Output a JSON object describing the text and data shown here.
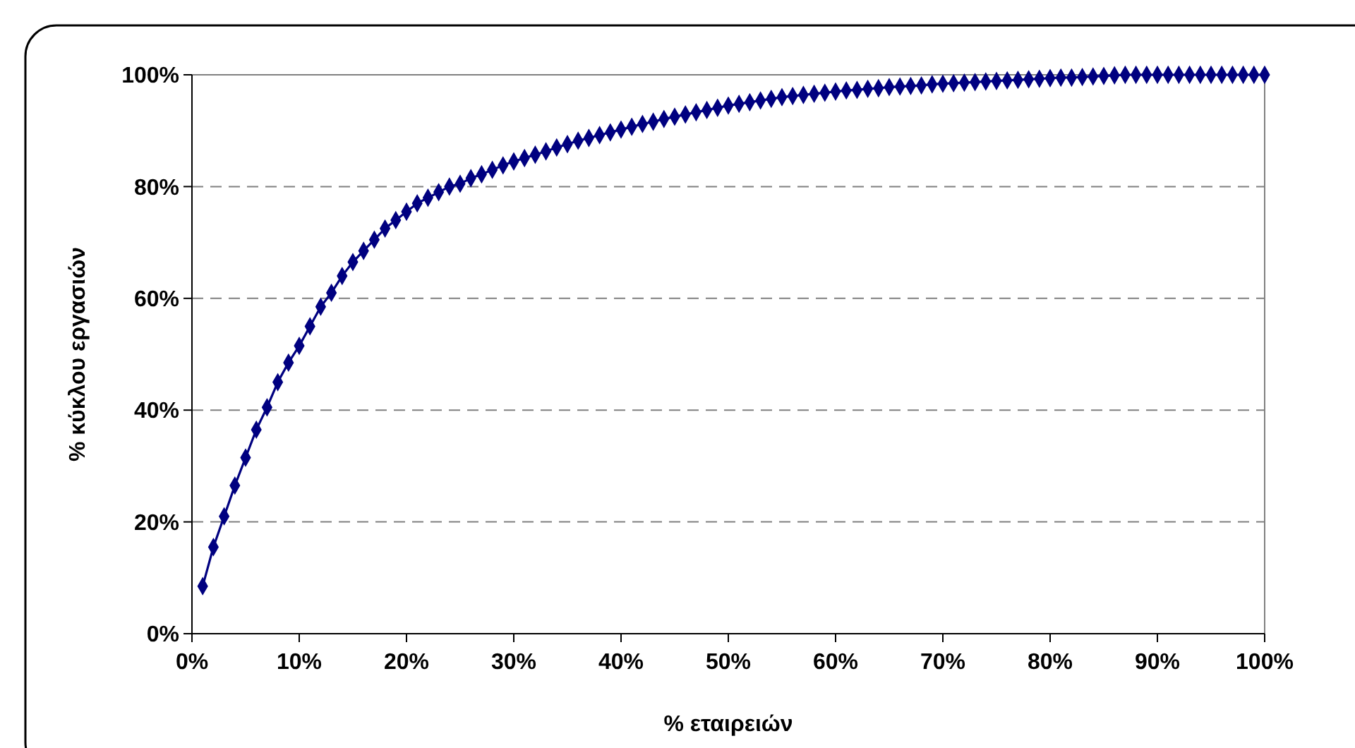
{
  "chart_data": {
    "type": "line",
    "xlabel": "% εταιρειών",
    "ylabel": "% κύκλου εργασιών",
    "x": [
      1,
      2,
      3,
      4,
      5,
      6,
      7,
      8,
      9,
      10,
      11,
      12,
      13,
      14,
      15,
      16,
      17,
      18,
      19,
      20,
      21,
      22,
      23,
      24,
      25,
      26,
      27,
      28,
      29,
      30,
      31,
      32,
      33,
      34,
      35,
      36,
      37,
      38,
      39,
      40,
      41,
      42,
      43,
      44,
      45,
      46,
      47,
      48,
      49,
      50,
      51,
      52,
      53,
      54,
      55,
      56,
      57,
      58,
      59,
      60,
      61,
      62,
      63,
      64,
      65,
      66,
      67,
      68,
      69,
      70,
      71,
      72,
      73,
      74,
      75,
      76,
      77,
      78,
      79,
      80,
      81,
      82,
      83,
      84,
      85,
      86,
      87,
      88,
      89,
      90,
      91,
      92,
      93,
      94,
      95,
      96,
      97,
      98,
      99,
      100
    ],
    "series": [
      {
        "color": "#000080",
        "values": [
          8.5,
          15.5,
          21,
          26.5,
          31.5,
          36.5,
          40.5,
          45,
          48.5,
          51.5,
          55,
          58.5,
          61,
          64,
          66.5,
          68.5,
          70.5,
          72.5,
          74,
          75.5,
          77,
          78,
          79,
          80,
          80.5,
          81.5,
          82.2,
          83,
          83.8,
          84.5,
          85.1,
          85.7,
          86.3,
          87,
          87.6,
          88.2,
          88.7,
          89.2,
          89.7,
          90.2,
          90.7,
          91.2,
          91.6,
          92.1,
          92.5,
          92.9,
          93.3,
          93.7,
          94.1,
          94.5,
          94.8,
          95.1,
          95.4,
          95.7,
          96,
          96.2,
          96.4,
          96.6,
          96.8,
          97,
          97.2,
          97.3,
          97.5,
          97.6,
          97.8,
          97.9,
          98,
          98.1,
          98.3,
          98.4,
          98.5,
          98.6,
          98.7,
          98.8,
          98.9,
          99,
          99.1,
          99.2,
          99.3,
          99.4,
          99.5,
          99.5,
          99.6,
          99.7,
          99.8,
          99.9,
          100,
          100,
          100,
          100,
          100,
          100,
          100,
          100,
          100,
          100,
          100,
          100,
          100,
          100
        ]
      }
    ],
    "xlim": [
      0,
      100
    ],
    "xticks": [
      {
        "value": 0,
        "label": "0%"
      },
      {
        "value": 10,
        "label": "10%"
      },
      {
        "value": 20,
        "label": "20%"
      },
      {
        "value": 30,
        "label": "30%"
      },
      {
        "value": 40,
        "label": "40%"
      },
      {
        "value": 50,
        "label": "50%"
      },
      {
        "value": 60,
        "label": "60%"
      },
      {
        "value": 70,
        "label": "70%"
      },
      {
        "value": 80,
        "label": "80%"
      },
      {
        "value": 90,
        "label": "90%"
      },
      {
        "value": 100,
        "label": "100%"
      }
    ],
    "ylim": [
      0,
      100
    ],
    "yticks": [
      {
        "value": 0,
        "label": "0%"
      },
      {
        "value": 20,
        "label": "20%"
      },
      {
        "value": 40,
        "label": "40%"
      },
      {
        "value": 60,
        "label": "60%"
      },
      {
        "value": 80,
        "label": "80%"
      },
      {
        "value": 100,
        "label": "100%"
      }
    ],
    "grid": "y",
    "marker": "diamond",
    "line_style": "solid"
  }
}
